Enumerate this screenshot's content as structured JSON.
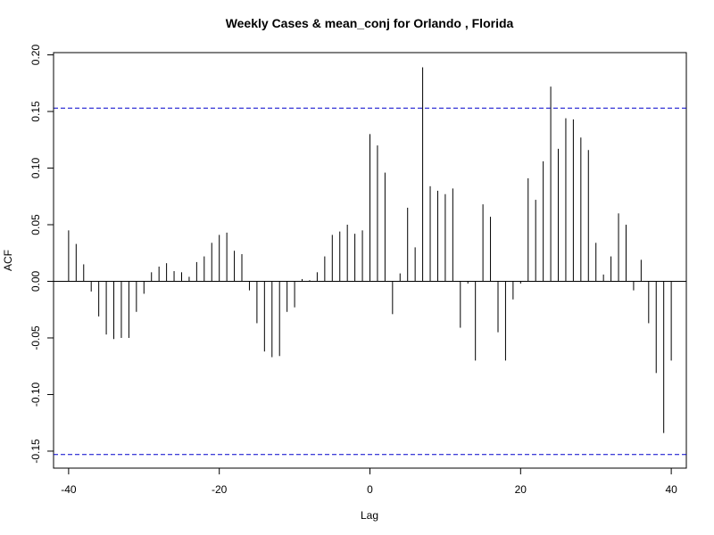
{
  "chart_data": {
    "type": "bar",
    "title": "Weekly Cases & mean_conj for Orlando , Florida",
    "xlabel": "Lag",
    "ylabel": "ACF",
    "xlim": [
      -42,
      42
    ],
    "ylim": [
      -0.165,
      0.202
    ],
    "x_ticks": [
      -40,
      -20,
      0,
      20,
      40
    ],
    "x_tick_labels": [
      "-40",
      "-20",
      "0",
      "20",
      "40"
    ],
    "y_ticks": [
      -0.15,
      -0.1,
      -0.05,
      0.0,
      0.05,
      0.1,
      0.15,
      0.2
    ],
    "y_tick_labels": [
      "-0.15",
      "-0.10",
      "-0.05",
      "0.00",
      "0.05",
      "0.10",
      "0.15",
      "0.20"
    ],
    "confidence_bounds": [
      0.153,
      -0.153
    ],
    "zero_line": 0,
    "grid": false,
    "colors": {
      "spikes": "#000000",
      "confidence_lines": "#0000cc",
      "zero_line": "#000000",
      "axes": "#000000"
    },
    "lags": [
      -40,
      -39,
      -38,
      -37,
      -36,
      -35,
      -34,
      -33,
      -32,
      -31,
      -30,
      -29,
      -28,
      -27,
      -26,
      -25,
      -24,
      -23,
      -22,
      -21,
      -20,
      -19,
      -18,
      -17,
      -16,
      -15,
      -14,
      -13,
      -12,
      -11,
      -10,
      -9,
      -8,
      -7,
      -6,
      -5,
      -4,
      -3,
      -2,
      -1,
      0,
      1,
      2,
      3,
      4,
      5,
      6,
      7,
      8,
      9,
      10,
      11,
      12,
      13,
      14,
      15,
      16,
      17,
      18,
      19,
      20,
      21,
      22,
      23,
      24,
      25,
      26,
      27,
      28,
      29,
      30,
      31,
      32,
      33,
      34,
      35,
      36,
      37,
      38,
      39,
      40
    ],
    "values": [
      0.045,
      0.033,
      0.015,
      -0.009,
      -0.031,
      -0.047,
      -0.051,
      -0.05,
      -0.05,
      -0.027,
      -0.011,
      0.008,
      0.013,
      0.016,
      0.009,
      0.008,
      0.004,
      0.017,
      0.022,
      0.034,
      0.041,
      0.043,
      0.027,
      0.024,
      -0.008,
      -0.037,
      -0.062,
      -0.067,
      -0.066,
      -0.027,
      -0.023,
      0.002,
      0.001,
      0.008,
      0.022,
      0.041,
      0.044,
      0.05,
      0.042,
      0.045,
      0.13,
      0.12,
      0.096,
      -0.029,
      0.007,
      0.065,
      0.03,
      0.189,
      0.084,
      0.08,
      0.077,
      0.082,
      -0.041,
      -0.002,
      -0.07,
      0.068,
      0.057,
      -0.045,
      -0.07,
      -0.016,
      -0.002,
      0.091,
      0.072,
      0.106,
      0.172,
      0.117,
      0.144,
      0.143,
      0.127,
      0.116,
      0.034,
      0.006,
      0.022,
      0.06,
      0.05,
      -0.008,
      0.019,
      -0.037,
      -0.081,
      -0.134,
      -0.07
    ]
  }
}
